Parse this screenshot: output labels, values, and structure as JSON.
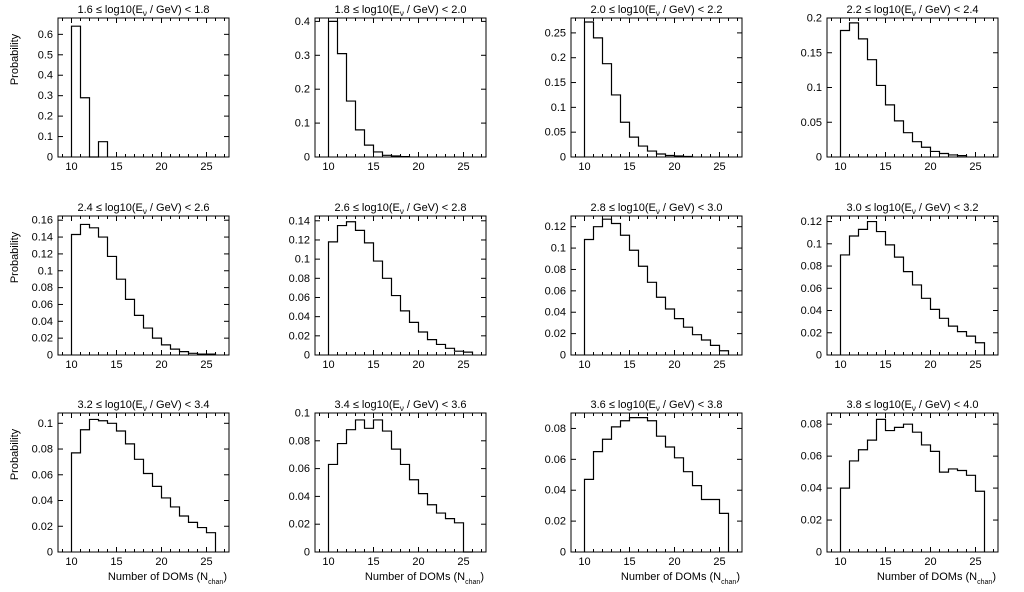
{
  "figure": {
    "ylabel": "Probability",
    "xlabel_main": "Number of DOMs (N",
    "xlabel_sub": "chan",
    "xlabel_close": ")"
  },
  "chart_data": [
    {
      "type": "bar",
      "title_pre": "1.6 ≤ log10(E",
      "title_sub": "ν",
      "title_post": " / GeV) < 1.8",
      "bin_edges_start": 10,
      "bin_width": 1,
      "values": [
        0.64,
        0.29,
        0,
        0.075
      ],
      "xlim": [
        8.5,
        27.5
      ],
      "ylim": [
        0,
        0.68
      ],
      "xticks": [
        10,
        15,
        20,
        25
      ],
      "yticks": [
        0,
        0.1,
        0.2,
        0.3,
        0.4,
        0.5,
        0.6
      ]
    },
    {
      "type": "bar",
      "title_pre": "1.8 ≤ log10(E",
      "title_sub": "ν",
      "title_post": " / GeV) < 2.0",
      "bin_edges_start": 10,
      "bin_width": 1,
      "values": [
        0.4,
        0.305,
        0.165,
        0.08,
        0.035,
        0.015,
        0.005,
        0.003,
        0.001
      ],
      "xlim": [
        8.5,
        27.5
      ],
      "ylim": [
        0,
        0.41
      ],
      "xticks": [
        10,
        15,
        20,
        25
      ],
      "yticks": [
        0,
        0.1,
        0.2,
        0.3,
        0.4
      ]
    },
    {
      "type": "bar",
      "title_pre": "2.0 ≤ log10(E",
      "title_sub": "ν",
      "title_post": " / GeV) < 2.2",
      "bin_edges_start": 10,
      "bin_width": 1,
      "values": [
        0.272,
        0.24,
        0.188,
        0.125,
        0.07,
        0.04,
        0.022,
        0.012,
        0.006,
        0.003,
        0.002,
        0.001
      ],
      "xlim": [
        8.5,
        27.5
      ],
      "ylim": [
        0,
        0.28
      ],
      "xticks": [
        10,
        15,
        20,
        25
      ],
      "yticks": [
        0,
        0.05,
        0.1,
        0.15,
        0.2,
        0.25
      ]
    },
    {
      "type": "bar",
      "title_pre": "2.2 ≤ log10(E",
      "title_sub": "ν",
      "title_post": " / GeV) < 2.4",
      "bin_edges_start": 10,
      "bin_width": 1,
      "values": [
        0.182,
        0.193,
        0.17,
        0.14,
        0.103,
        0.075,
        0.052,
        0.035,
        0.022,
        0.014,
        0.008,
        0.005,
        0.003,
        0.002
      ],
      "xlim": [
        8.5,
        27.5
      ],
      "ylim": [
        0,
        0.2
      ],
      "xticks": [
        10,
        15,
        20,
        25
      ],
      "yticks": [
        0,
        0.05,
        0.1,
        0.15,
        0.2
      ]
    },
    {
      "type": "bar",
      "title_pre": "2.4 ≤ log10(E",
      "title_sub": "ν",
      "title_post": " / GeV) < 2.6",
      "bin_edges_start": 10,
      "bin_width": 1,
      "values": [
        0.143,
        0.155,
        0.151,
        0.14,
        0.117,
        0.09,
        0.066,
        0.047,
        0.032,
        0.02,
        0.012,
        0.007,
        0.004,
        0.002,
        0.001,
        0.001
      ],
      "xlim": [
        8.5,
        27.5
      ],
      "ylim": [
        0,
        0.165
      ],
      "xticks": [
        10,
        15,
        20,
        25
      ],
      "yticks": [
        0,
        0.02,
        0.04,
        0.06,
        0.08,
        0.1,
        0.12,
        0.14,
        0.16
      ]
    },
    {
      "type": "bar",
      "title_pre": "2.6 ≤ log10(E",
      "title_sub": "ν",
      "title_post": " / GeV) < 2.8",
      "bin_edges_start": 10,
      "bin_width": 1,
      "values": [
        0.118,
        0.135,
        0.139,
        0.13,
        0.117,
        0.098,
        0.08,
        0.062,
        0.046,
        0.034,
        0.024,
        0.016,
        0.011,
        0.007,
        0.004,
        0.003
      ],
      "xlim": [
        8.5,
        27.5
      ],
      "ylim": [
        0,
        0.145
      ],
      "xticks": [
        10,
        15,
        20,
        25
      ],
      "yticks": [
        0,
        0.02,
        0.04,
        0.06,
        0.08,
        0.1,
        0.12,
        0.14
      ]
    },
    {
      "type": "bar",
      "title_pre": "2.8 ≤ log10(E",
      "title_sub": "ν",
      "title_post": " / GeV) < 3.0",
      "bin_edges_start": 10,
      "bin_width": 1,
      "values": [
        0.108,
        0.12,
        0.127,
        0.123,
        0.112,
        0.098,
        0.083,
        0.068,
        0.054,
        0.043,
        0.034,
        0.026,
        0.019,
        0.014,
        0.009,
        0.004
      ],
      "xlim": [
        8.5,
        27.5
      ],
      "ylim": [
        0,
        0.13
      ],
      "xticks": [
        10,
        15,
        20,
        25
      ],
      "yticks": [
        0,
        0.02,
        0.04,
        0.06,
        0.08,
        0.1,
        0.12
      ]
    },
    {
      "type": "bar",
      "title_pre": "3.0 ≤ log10(E",
      "title_sub": "ν",
      "title_post": " / GeV) < 3.2",
      "bin_edges_start": 10,
      "bin_width": 1,
      "values": [
        0.09,
        0.107,
        0.113,
        0.12,
        0.111,
        0.099,
        0.088,
        0.075,
        0.063,
        0.051,
        0.041,
        0.033,
        0.026,
        0.021,
        0.017,
        0.011
      ],
      "xlim": [
        8.5,
        27.5
      ],
      "ylim": [
        0,
        0.125
      ],
      "xticks": [
        10,
        15,
        20,
        25
      ],
      "yticks": [
        0,
        0.02,
        0.04,
        0.06,
        0.08,
        0.1,
        0.12
      ]
    },
    {
      "type": "bar",
      "title_pre": "3.2 ≤ log10(E",
      "title_sub": "ν",
      "title_post": " / GeV) < 3.4",
      "bin_edges_start": 10,
      "bin_width": 1,
      "values": [
        0.077,
        0.095,
        0.103,
        0.102,
        0.1,
        0.094,
        0.084,
        0.072,
        0.061,
        0.051,
        0.042,
        0.035,
        0.028,
        0.023,
        0.019,
        0.015
      ],
      "xlim": [
        8.5,
        27.5
      ],
      "ylim": [
        0,
        0.108
      ],
      "xticks": [
        10,
        15,
        20,
        25
      ],
      "yticks": [
        0,
        0.02,
        0.04,
        0.06,
        0.08,
        0.1
      ]
    },
    {
      "type": "bar",
      "title_pre": "3.4 ≤ log10(E",
      "title_sub": "ν",
      "title_post": " / GeV) < 3.6",
      "bin_edges_start": 10,
      "bin_width": 1,
      "values": [
        0.063,
        0.078,
        0.088,
        0.095,
        0.089,
        0.095,
        0.087,
        0.074,
        0.063,
        0.052,
        0.042,
        0.034,
        0.028,
        0.024,
        0.021,
        0
      ],
      "xlim": [
        8.5,
        27.5
      ],
      "ylim": [
        0,
        0.1
      ],
      "xticks": [
        10,
        15,
        20,
        25
      ],
      "yticks": [
        0,
        0.02,
        0.04,
        0.06,
        0.08,
        0.1
      ]
    },
    {
      "type": "bar",
      "title_pre": "3.6 ≤ log10(E",
      "title_sub": "ν",
      "title_post": " / GeV) < 3.8",
      "bin_edges_start": 10,
      "bin_width": 1,
      "values": [
        0.047,
        0.065,
        0.073,
        0.081,
        0.085,
        0.087,
        0.087,
        0.085,
        0.075,
        0.068,
        0.061,
        0.052,
        0.043,
        0.034,
        0.034,
        0.025
      ],
      "xlim": [
        8.5,
        27.5
      ],
      "ylim": [
        0,
        0.09
      ],
      "xticks": [
        10,
        15,
        20,
        25
      ],
      "yticks": [
        0,
        0.02,
        0.04,
        0.06,
        0.08
      ]
    },
    {
      "type": "bar",
      "title_pre": "3.8 ≤ log10(E",
      "title_sub": "ν",
      "title_post": " / GeV) < 4.0",
      "bin_edges_start": 10,
      "bin_width": 1,
      "values": [
        0.04,
        0.057,
        0.064,
        0.07,
        0.083,
        0.076,
        0.078,
        0.08,
        0.075,
        0.067,
        0.063,
        0.05,
        0.052,
        0.051,
        0.048,
        0.038
      ],
      "xlim": [
        8.5,
        27.5
      ],
      "ylim": [
        0,
        0.087
      ],
      "xticks": [
        10,
        15,
        20,
        25
      ],
      "yticks": [
        0,
        0.02,
        0.04,
        0.06,
        0.08
      ]
    }
  ]
}
